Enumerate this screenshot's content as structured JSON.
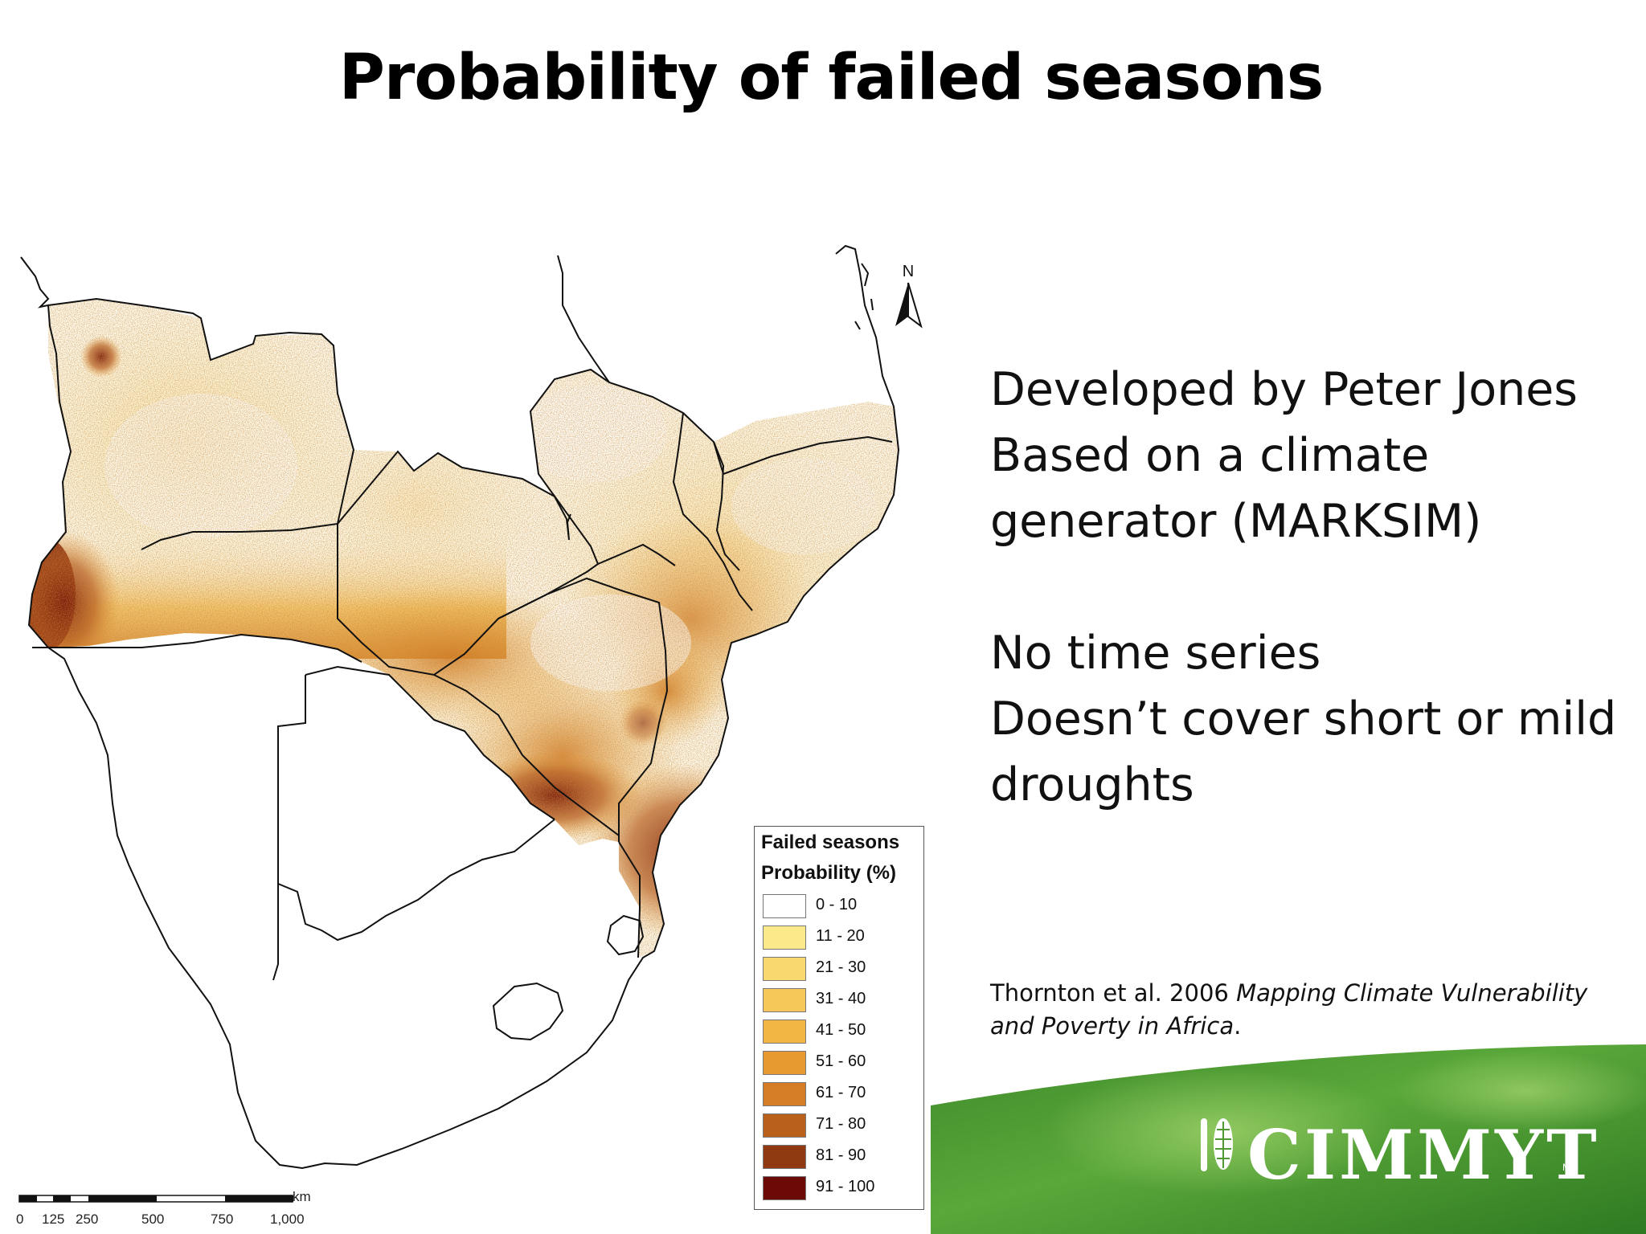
{
  "slide": {
    "title": "Probability of failed seasons",
    "bullets_group1": [
      "Developed by Peter Jones",
      "Based on a climate",
      "generator (MARKSIM)"
    ],
    "bullets_group2": [
      "No time  series",
      "Doesn’t cover short or mild",
      "droughts"
    ],
    "citation": {
      "authors": "Thornton et al. 2006 ",
      "title_line1": "Mapping Climate Vulnerability",
      "title_line2": "and Poverty in Africa",
      "end": "."
    }
  },
  "map": {
    "north_label": "N",
    "legend": {
      "title_line1": "Failed seasons",
      "title_line2": "Probability (%)",
      "classes": [
        {
          "label": "0 - 10",
          "color": "#ffffff"
        },
        {
          "label": "11 - 20",
          "color": "#fce98a"
        },
        {
          "label": "21 - 30",
          "color": "#f9d870"
        },
        {
          "label": "31 - 40",
          "color": "#f6c85a"
        },
        {
          "label": "41 - 50",
          "color": "#f2b644"
        },
        {
          "label": "51 - 60",
          "color": "#e79a30"
        },
        {
          "label": "61 - 70",
          "color": "#d47d24"
        },
        {
          "label": "71 - 80",
          "color": "#b9601a"
        },
        {
          "label": "81 - 90",
          "color": "#8f3a10"
        },
        {
          "label": "91 - 100",
          "color": "#6b0a06"
        }
      ]
    },
    "scale": {
      "unit": "km",
      "ticks": [
        "0",
        "125",
        "250",
        "500",
        "750",
        "1,000"
      ]
    }
  },
  "logo": {
    "name": "CIMMYT",
    "mark": "MR"
  }
}
